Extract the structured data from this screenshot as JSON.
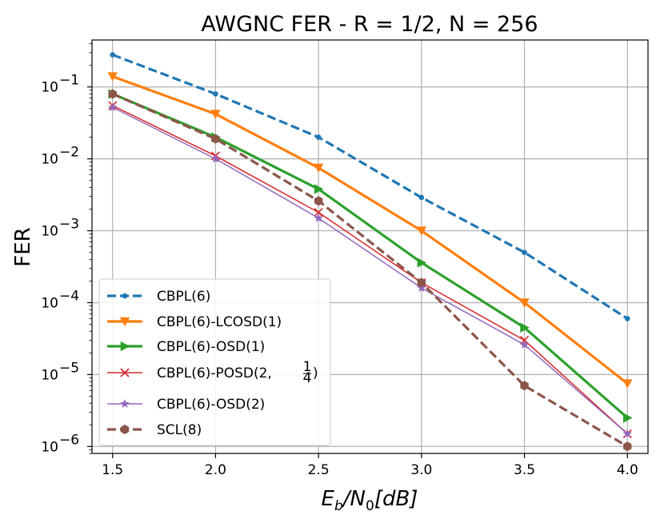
{
  "chart_data": {
    "type": "line",
    "title": "AWGNC FER - R = 1/2, N = 256",
    "xlabel": "E_b/N_0[dB]",
    "ylabel": "FER",
    "xscale": "linear",
    "yscale": "log",
    "xlim": [
      1.4,
      4.1
    ],
    "ylim": [
      8e-07,
      0.45
    ],
    "xticks": [
      1.5,
      2.0,
      2.5,
      3.0,
      3.5,
      4.0
    ],
    "xtick_labels": [
      "1.5",
      "2.0",
      "2.5",
      "3.0",
      "3.5",
      "4.0"
    ],
    "yticks": [
      -6,
      -5,
      -4,
      -3,
      -2,
      -1
    ],
    "grid": true,
    "legend_position": "lower-left",
    "x": [
      1.5,
      2.0,
      2.5,
      3.0,
      3.5,
      4.0
    ],
    "series": [
      {
        "name": "CBPL(6)",
        "values": [
          0.28,
          0.08,
          0.02,
          0.0029,
          0.0005,
          6e-05
        ],
        "color": "#1f77b4",
        "marker": "circle",
        "dash": "dashed",
        "width": "thick"
      },
      {
        "name": "CBPL(6)-LCOSD(1)",
        "values": [
          0.14,
          0.042,
          0.0075,
          0.001,
          0.0001,
          7.5e-06
        ],
        "color": "#ff7f0e",
        "marker": "triangle-down",
        "dash": "solid",
        "width": "thick"
      },
      {
        "name": "CBPL(6)-OSD(1)",
        "values": [
          0.08,
          0.02,
          0.0038,
          0.00036,
          4.5e-05,
          2.5e-06
        ],
        "color": "#2ca02c",
        "marker": "triangle-right",
        "dash": "solid",
        "width": "thick"
      },
      {
        "name": "CBPL(6)-POSD(2, 1/4)",
        "values": [
          0.055,
          0.011,
          0.0018,
          0.00019,
          3e-05,
          1.5e-06
        ],
        "color": "#d62728",
        "marker": "x",
        "dash": "solid",
        "width": "thin"
      },
      {
        "name": "CBPL(6)-OSD(2)",
        "values": [
          0.052,
          0.01,
          0.0015,
          0.00016,
          2.6e-05,
          1.5e-06
        ],
        "color": "#9467bd",
        "marker": "star",
        "dash": "solid",
        "width": "thin"
      },
      {
        "name": "SCL(8)",
        "values": [
          0.08,
          0.019,
          0.0026,
          0.00019,
          7e-06,
          1e-06
        ],
        "color": "#8c564b",
        "marker": "hexagon",
        "dash": "dashed",
        "width": "thick"
      }
    ]
  },
  "legend": {
    "entries": [
      {
        "label": "CBPL(6)"
      },
      {
        "label": "CBPL(6)-LCOSD(1)"
      },
      {
        "label": "CBPL(6)-OSD(1)"
      },
      {
        "label": "CBPL(6)-POSD(2, ",
        "frac_num": "1",
        "frac_den": "4",
        "suffix": ""
      },
      {
        "label": "CBPL(6)-OSD(2)"
      },
      {
        "label": "SCL(8)"
      }
    ]
  },
  "axis_labels": {
    "x_E": "E",
    "x_sub_b": "b",
    "x_slash": "/N",
    "x_sub_0": "0",
    "x_bracket": "[dB]",
    "y_base": "10",
    "y_exponents": [
      "−6",
      "−5",
      "−4",
      "−3",
      "−2",
      "−1"
    ]
  }
}
